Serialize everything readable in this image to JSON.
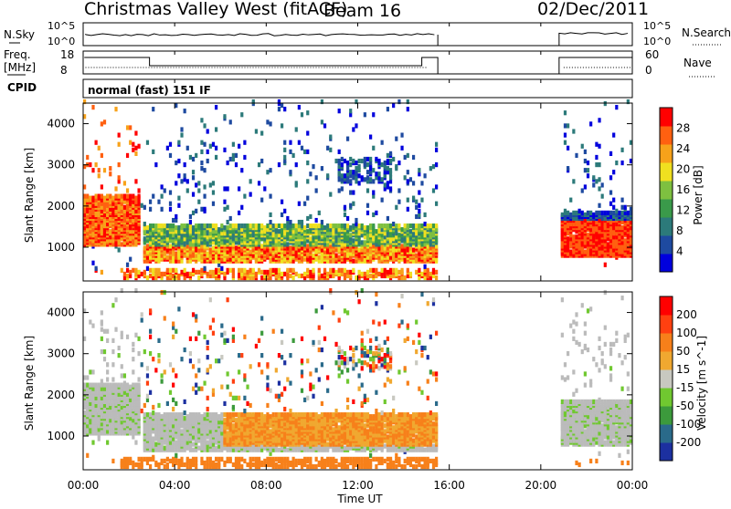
{
  "header": {
    "station": "Christmas Valley West (fitACF)",
    "beam": "Beam 16",
    "date": "02/Dec/2011"
  },
  "panel_noise": {
    "left_label": "N.Sky",
    "right_label": "N.Search",
    "left_ticks": [
      "10^5",
      "10^0"
    ],
    "right_ticks": [
      "10^5",
      "10^0"
    ]
  },
  "panel_freq": {
    "left_label_line1": "Freq.",
    "left_label_line2": "[MHz]",
    "right_label": "Nave",
    "left_ticks": [
      "18",
      "8"
    ],
    "right_ticks": [
      "60",
      "0"
    ]
  },
  "panel_cpid": {
    "label": "CPID",
    "mode_text": "normal (fast) 151 IF"
  },
  "chart_data": [
    {
      "type": "heatmap",
      "name": "power",
      "ylabel": "Slant Range [km]",
      "yticks": [
        "4000",
        "3000",
        "2000",
        "1000"
      ],
      "ylim": [
        180,
        4500
      ],
      "colorbar_label": "Power [dB]",
      "colorbar_ticks": [
        "28",
        "24",
        "20",
        "16",
        "12",
        "8",
        "4"
      ],
      "colors": [
        "#0000dd",
        "#1e4aa0",
        "#2c7a7a",
        "#3a9a4a",
        "#7ec040",
        "#f0e020",
        "#f7a21a",
        "#ff6010",
        "#ff0000"
      ]
    },
    {
      "type": "heatmap",
      "name": "velocity",
      "ylabel": "Slant Range [km]",
      "yticks": [
        "4000",
        "3000",
        "2000",
        "1000"
      ],
      "ylim": [
        180,
        4500
      ],
      "colorbar_label": "Velocity [m s^-1]",
      "colorbar_ticks": [
        "200",
        "100",
        "50",
        "15",
        "-15",
        "-50",
        "-100",
        "-200"
      ],
      "colors": [
        "#1c30a0",
        "#2a6a8a",
        "#3c9a3c",
        "#70c830",
        "#c8c8c0",
        "#f0a830",
        "#f7801a",
        "#ff4010",
        "#ff0000"
      ]
    }
  ],
  "xaxis": {
    "label": "Time UT",
    "ticks": [
      "00:00",
      "04:00",
      "08:00",
      "12:00",
      "16:00",
      "20:00",
      "00:00"
    ]
  },
  "ground_scatter_color": "#bbbbbb"
}
